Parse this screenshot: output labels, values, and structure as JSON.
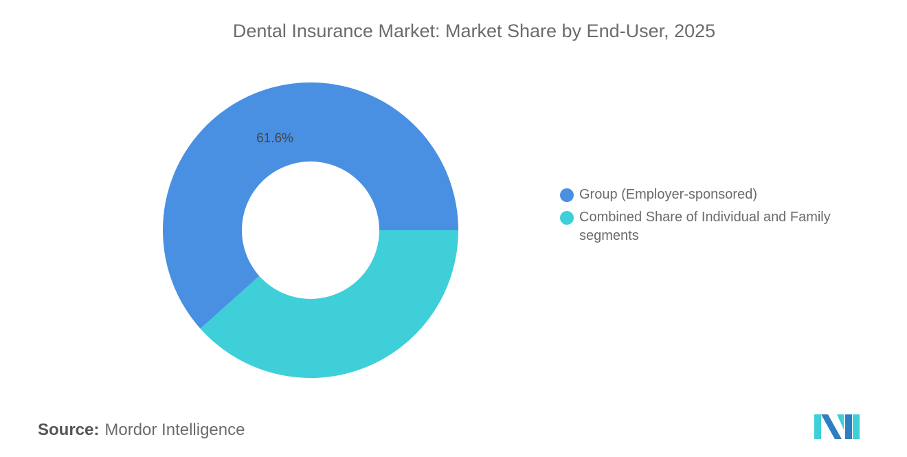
{
  "chart_data": {
    "type": "pie",
    "variant": "donut",
    "title": "Dental Insurance Market: Market Share by End-User, 2025",
    "slices": [
      {
        "name": "Group (Employer-sponsored)",
        "value": 61.6,
        "label": "61.6%",
        "color": "#4a90e2"
      },
      {
        "name": "Combined Share of Individual and Family segments",
        "value": 38.4,
        "label": "",
        "color": "#3ecfd8"
      }
    ],
    "legend_placement": "right"
  },
  "source": {
    "label": "Source:",
    "value": "Mordor Intelligence"
  },
  "logo": {
    "text": "Mordor Intelligence",
    "colors": [
      "#2e7fc1",
      "#3ecfd8"
    ]
  }
}
